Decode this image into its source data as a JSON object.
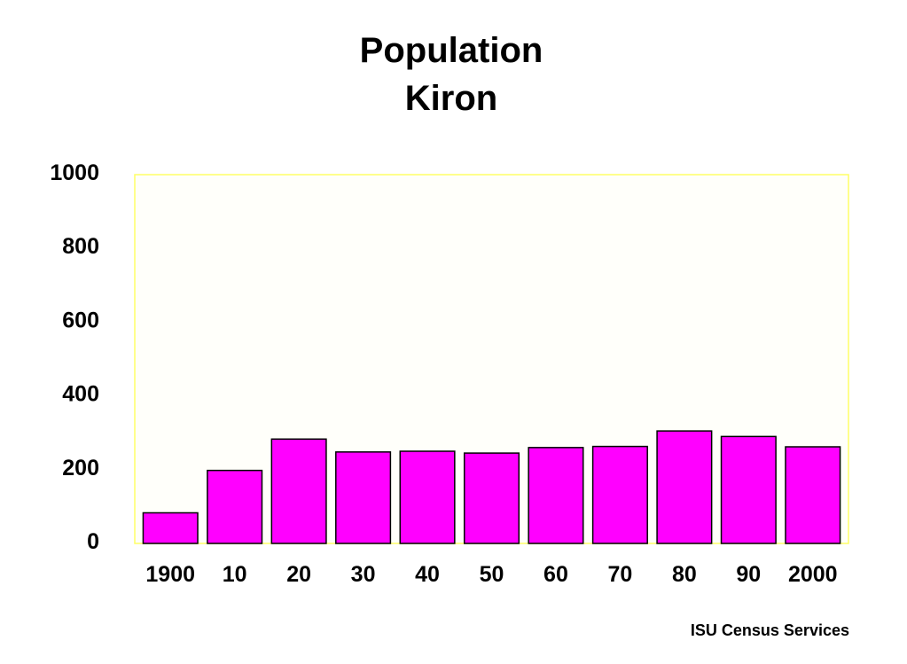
{
  "chart_data": {
    "type": "bar",
    "title": "Population",
    "subtitle": "Kiron",
    "categories": [
      "1900",
      "10",
      "20",
      "30",
      "40",
      "50",
      "60",
      "70",
      "80",
      "90",
      "2000"
    ],
    "values": [
      83,
      198,
      283,
      248,
      250,
      245,
      260,
      263,
      305,
      290,
      262
    ],
    "yticks": [
      "0",
      "200",
      "400",
      "600",
      "800",
      "1000"
    ],
    "ylim": [
      0,
      1000
    ],
    "xlabel": "",
    "ylabel": "",
    "grid": false,
    "legend": "none",
    "colors": {
      "bar_fill": "#ff00ff",
      "bar_stroke": "#000000",
      "plot_border": "#ffff66",
      "plot_background": "#fffffa"
    }
  },
  "footer": {
    "credit": "ISU Census Services"
  }
}
